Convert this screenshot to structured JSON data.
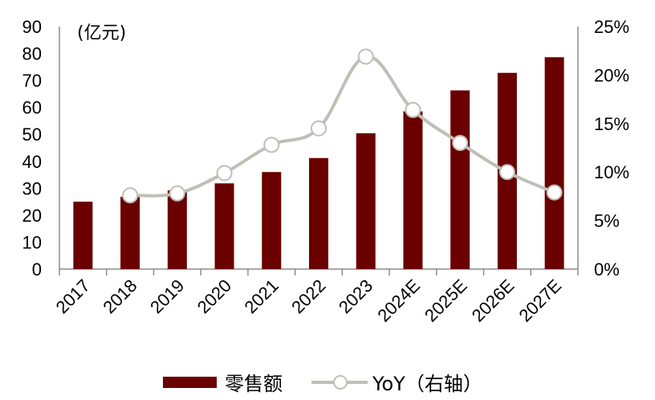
{
  "chart_data": {
    "type": "bar+line",
    "title": "",
    "categories": [
      "2017",
      "2018",
      "2019",
      "2020",
      "2021",
      "2022",
      "2023",
      "2024E",
      "2025E",
      "2026E",
      "2027E"
    ],
    "series": [
      {
        "name": "零售额",
        "type": "bar",
        "axis": "left",
        "color": "#6b0000",
        "values": [
          25.0,
          26.8,
          29.2,
          31.8,
          36.0,
          41.2,
          50.4,
          58.5,
          66.3,
          72.8,
          78.6
        ]
      },
      {
        "name": "YoY（右轴）",
        "type": "line",
        "axis": "right",
        "color": "#bfbfb6",
        "unit": "%",
        "values": [
          null,
          7.6,
          7.8,
          9.9,
          12.8,
          14.5,
          21.9,
          16.4,
          13.0,
          10.0,
          7.9
        ]
      }
    ],
    "left_axis": {
      "label": "(亿元)",
      "ylim": [
        0,
        90
      ],
      "ticks": [
        "0",
        "10",
        "20",
        "30",
        "40",
        "50",
        "60",
        "70",
        "80",
        "90"
      ]
    },
    "right_axis": {
      "label": "",
      "ylim": [
        0,
        25
      ],
      "ticks": [
        "0%",
        "5%",
        "10%",
        "15%",
        "20%",
        "25%"
      ]
    },
    "xlabel": "",
    "grid": false,
    "legend_position": "bottom"
  },
  "legend": {
    "bar_label": "零售额",
    "line_label": "YoY（右轴）"
  },
  "unit_label": "(亿元)"
}
